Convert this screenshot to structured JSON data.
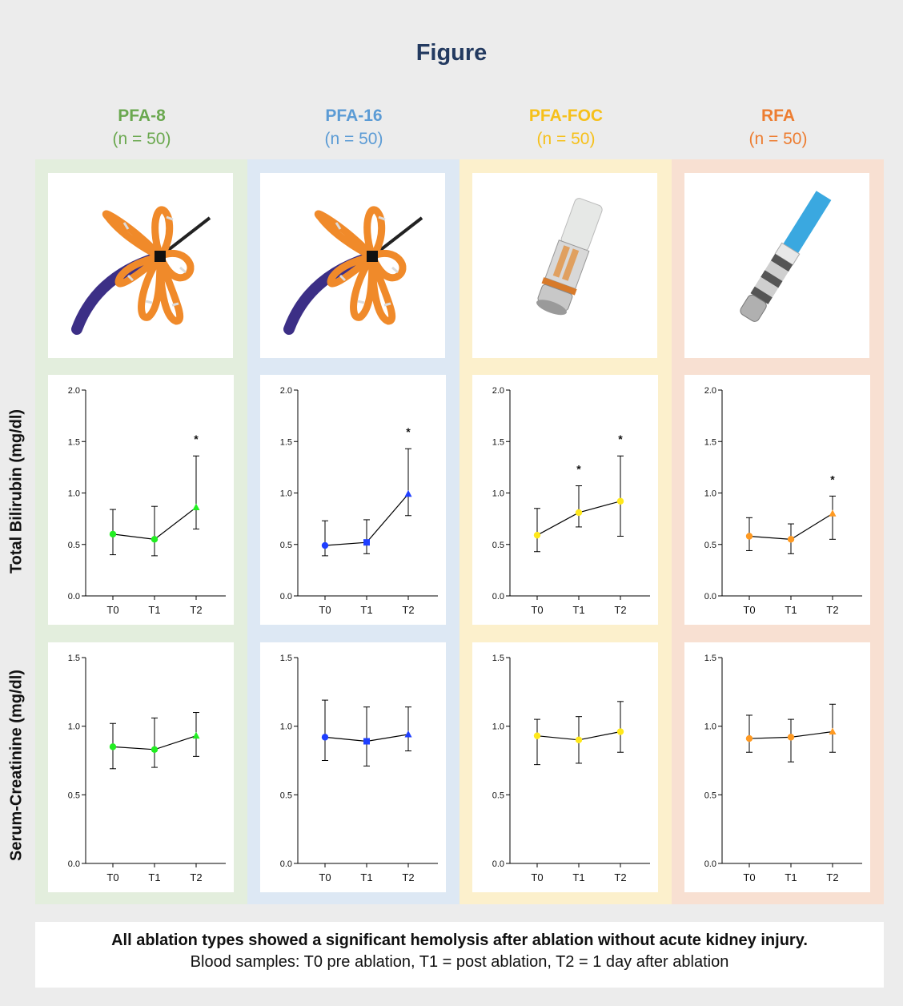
{
  "title": "Figure",
  "groups": [
    {
      "name": "PFA-8",
      "n": "(n = 50)",
      "color": "#6aa84f",
      "bg": "#e3eedd",
      "marker_color": "#22ee22",
      "marker": "circle-circle-triangle"
    },
    {
      "name": "PFA-16",
      "n": "(n = 50)",
      "color": "#5b9bd5",
      "bg": "#dde8f4",
      "marker_color": "#1f3fff",
      "marker": "circle-square-triangle"
    },
    {
      "name": "PFA-FOC",
      "n": "(n = 50)",
      "color": "#f6c01a",
      "bg": "#fcf0cc",
      "marker_color": "#ffe81a",
      "marker": "circle-circle-circle"
    },
    {
      "name": "RFA",
      "n": "(n = 50)",
      "color": "#ed7d31",
      "bg": "#f8e0d2",
      "marker_color": "#ff9a22",
      "marker": "circle-circle-triangle"
    }
  ],
  "row_labels": {
    "bilirubin": "Total Bilirubin (mg/dl)",
    "creatinine": "Serum-Creatinine (mg/dl)"
  },
  "images": [
    {
      "icon": "pfa-8-catheter-icon",
      "colors": {
        "petals": "#f08a2a",
        "shaft": "#3c2f86"
      }
    },
    {
      "icon": "pfa-16-catheter-icon",
      "colors": {
        "petals": "#f08a2a",
        "shaft": "#3c2f86"
      }
    },
    {
      "icon": "pfa-focal-catheter-icon",
      "colors": {
        "body": "#c8c8c8",
        "ring": "#d77a2a"
      }
    },
    {
      "icon": "rfa-catheter-icon",
      "colors": {
        "shaft": "#3aa8e0",
        "tip": "#b0b0b0"
      }
    }
  ],
  "chart_data": [
    {
      "type": "line",
      "group": "PFA-8",
      "metric": "bilirubin",
      "x": [
        "T0",
        "T1",
        "T2"
      ],
      "values": [
        0.6,
        0.55,
        0.86
      ],
      "lower": [
        0.4,
        0.39,
        0.65
      ],
      "upper": [
        0.84,
        0.87,
        1.36
      ],
      "significant": [
        false,
        false,
        true
      ],
      "ylim": [
        0,
        2
      ],
      "yticks": [
        "0.0",
        "0.5",
        "1.0",
        "1.5",
        "2.0"
      ]
    },
    {
      "type": "line",
      "group": "PFA-16",
      "metric": "bilirubin",
      "x": [
        "T0",
        "T1",
        "T2"
      ],
      "values": [
        0.49,
        0.52,
        0.99
      ],
      "lower": [
        0.39,
        0.41,
        0.78
      ],
      "upper": [
        0.73,
        0.74,
        1.43
      ],
      "significant": [
        false,
        false,
        true
      ],
      "ylim": [
        0,
        2
      ],
      "yticks": [
        "0.0",
        "0.5",
        "1.0",
        "1.5",
        "2.0"
      ]
    },
    {
      "type": "line",
      "group": "PFA-FOC",
      "metric": "bilirubin",
      "x": [
        "T0",
        "T1",
        "T2"
      ],
      "values": [
        0.59,
        0.81,
        0.92
      ],
      "lower": [
        0.43,
        0.67,
        0.58
      ],
      "upper": [
        0.85,
        1.07,
        1.36
      ],
      "significant": [
        false,
        true,
        true
      ],
      "ylim": [
        0,
        2
      ],
      "yticks": [
        "0.0",
        "0.5",
        "1.0",
        "1.5",
        "2.0"
      ]
    },
    {
      "type": "line",
      "group": "RFA",
      "metric": "bilirubin",
      "x": [
        "T0",
        "T1",
        "T2"
      ],
      "values": [
        0.58,
        0.55,
        0.8
      ],
      "lower": [
        0.44,
        0.41,
        0.55
      ],
      "upper": [
        0.76,
        0.7,
        0.97
      ],
      "significant": [
        false,
        false,
        true
      ],
      "ylim": [
        0,
        2
      ],
      "yticks": [
        "0.0",
        "0.5",
        "1.0",
        "1.5",
        "2.0"
      ]
    },
    {
      "type": "line",
      "group": "PFA-8",
      "metric": "creatinine",
      "x": [
        "T0",
        "T1",
        "T2"
      ],
      "values": [
        0.85,
        0.83,
        0.93
      ],
      "lower": [
        0.69,
        0.7,
        0.78
      ],
      "upper": [
        1.02,
        1.06,
        1.1
      ],
      "significant": [
        false,
        false,
        false
      ],
      "ylim": [
        0,
        1.5
      ],
      "yticks": [
        "0.0",
        "0.5",
        "1.0",
        "1.5"
      ]
    },
    {
      "type": "line",
      "group": "PFA-16",
      "metric": "creatinine",
      "x": [
        "T0",
        "T1",
        "T2"
      ],
      "values": [
        0.92,
        0.89,
        0.94
      ],
      "lower": [
        0.75,
        0.71,
        0.82
      ],
      "upper": [
        1.19,
        1.14,
        1.14
      ],
      "significant": [
        false,
        false,
        false
      ],
      "ylim": [
        0,
        1.5
      ],
      "yticks": [
        "0.0",
        "0.5",
        "1.0",
        "1.5"
      ]
    },
    {
      "type": "line",
      "group": "PFA-FOC",
      "metric": "creatinine",
      "x": [
        "T0",
        "T1",
        "T2"
      ],
      "values": [
        0.93,
        0.9,
        0.96
      ],
      "lower": [
        0.72,
        0.73,
        0.81
      ],
      "upper": [
        1.05,
        1.07,
        1.18
      ],
      "significant": [
        false,
        false,
        false
      ],
      "ylim": [
        0,
        1.5
      ],
      "yticks": [
        "0.0",
        "0.5",
        "1.0",
        "1.5"
      ]
    },
    {
      "type": "line",
      "group": "RFA",
      "metric": "creatinine",
      "x": [
        "T0",
        "T1",
        "T2"
      ],
      "values": [
        0.91,
        0.92,
        0.96
      ],
      "lower": [
        0.81,
        0.74,
        0.81
      ],
      "upper": [
        1.08,
        1.05,
        1.16
      ],
      "significant": [
        false,
        false,
        false
      ],
      "ylim": [
        0,
        1.5
      ],
      "yticks": [
        "0.0",
        "0.5",
        "1.0",
        "1.5"
      ]
    }
  ],
  "significance_marker": "*",
  "caption": {
    "line1": "All ablation types showed a significant hemolysis after ablation without acute kidney injury.",
    "line2": "Blood samples: T0 pre ablation, T1 = post ablation, T2 = 1 day after ablation"
  }
}
